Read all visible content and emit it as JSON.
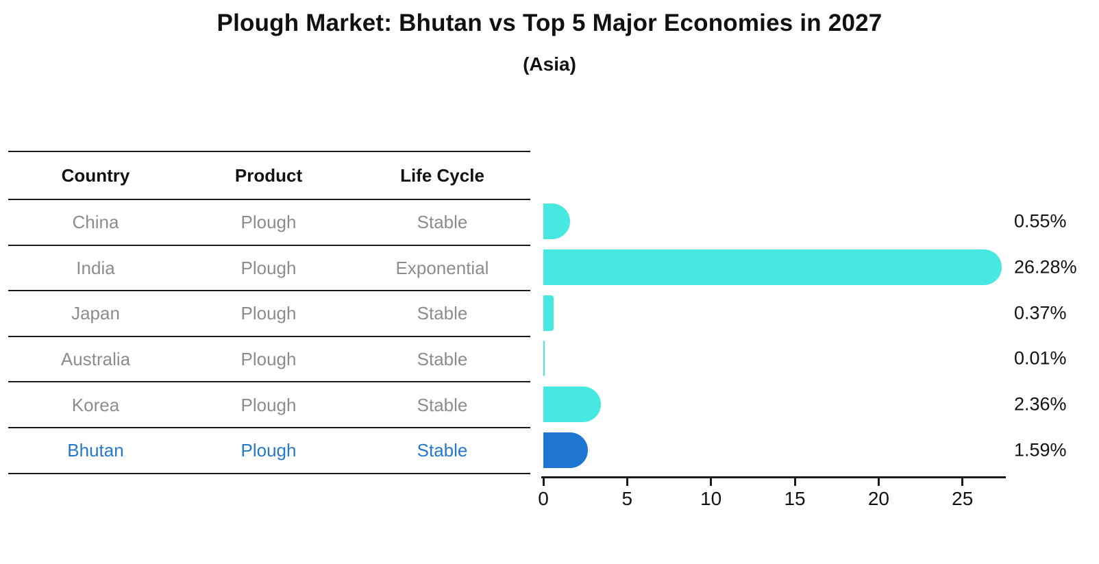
{
  "title": "Plough Market: Bhutan vs Top 5 Major Economies in 2027",
  "subtitle": "(Asia)",
  "table": {
    "headers": [
      "Country",
      "Product",
      "Life Cycle"
    ],
    "rows": [
      {
        "country": "China",
        "product": "Plough",
        "life_cycle": "Stable",
        "highlight": false
      },
      {
        "country": "India",
        "product": "Plough",
        "life_cycle": "Exponential",
        "highlight": false
      },
      {
        "country": "Japan",
        "product": "Plough",
        "life_cycle": "Stable",
        "highlight": false
      },
      {
        "country": "Australia",
        "product": "Plough",
        "life_cycle": "Stable",
        "highlight": false
      },
      {
        "country": "Korea",
        "product": "Plough",
        "life_cycle": "Stable",
        "highlight": false
      },
      {
        "country": "Bhutan",
        "product": "Plough",
        "life_cycle": "Stable",
        "highlight": true
      }
    ]
  },
  "chart_data": {
    "type": "bar",
    "orientation": "horizontal",
    "title": "Plough Market: Bhutan vs Top 5 Major Economies in 2027",
    "subtitle": "(Asia)",
    "categories": [
      "China",
      "India",
      "Japan",
      "Australia",
      "Korea",
      "Bhutan"
    ],
    "values": [
      0.55,
      26.28,
      0.37,
      0.01,
      2.36,
      1.59
    ],
    "value_labels": [
      "0.55%",
      "26.28%",
      "0.37%",
      "0.01%",
      "2.36%",
      "1.59%"
    ],
    "x_ticks": [
      "0",
      "5",
      "10",
      "15",
      "20",
      "25"
    ],
    "xlim": [
      0,
      27.6
    ],
    "grid": false,
    "legend": false,
    "highlight_index": 5,
    "bar_color": "#47E8E2",
    "highlight_color": "#1E76D2"
  },
  "colors": {
    "text": "#111111",
    "muted_text": "#8C8C8C",
    "highlight_text": "#2478CC",
    "line": "#1A1A1A",
    "background": "#FFFFFF"
  }
}
